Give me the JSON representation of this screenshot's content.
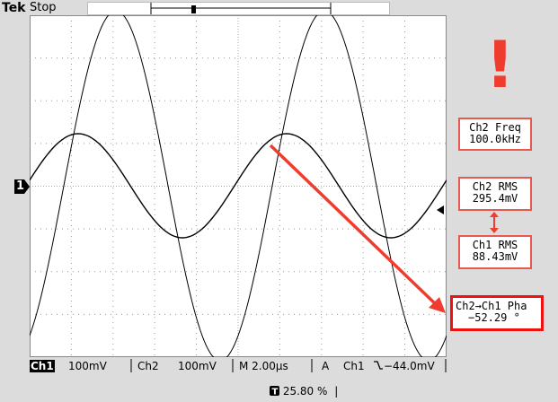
{
  "header": {
    "brand": "Tek",
    "run_state": "Stop",
    "trigger_marker": "T"
  },
  "channel_marker": "1",
  "measurements": [
    {
      "line1": "Ch2 Freq",
      "line2": "100.0kHz"
    },
    {
      "line1": "Ch2 RMS",
      "line2": "295.4mV"
    },
    {
      "line1": "Ch1 RMS",
      "line2": "88.43mV"
    },
    {
      "line1": "Ch2→Ch1 Pha",
      "line2": "−52.29 °"
    }
  ],
  "status": {
    "ch1_label": "Ch1",
    "ch1_scale": "100mV",
    "ch2_label": "Ch2",
    "ch2_scale": "100mV",
    "timebase": "M 2.00µs",
    "trigger_mode": "A",
    "trigger_src": "Ch1",
    "trigger_level": "−44.0mV",
    "trigger_pos": "25.80 %"
  },
  "annotation": {
    "exclamation": "!"
  },
  "colors": {
    "accent": "#ee1111",
    "annotation": "#f03c2e"
  }
}
